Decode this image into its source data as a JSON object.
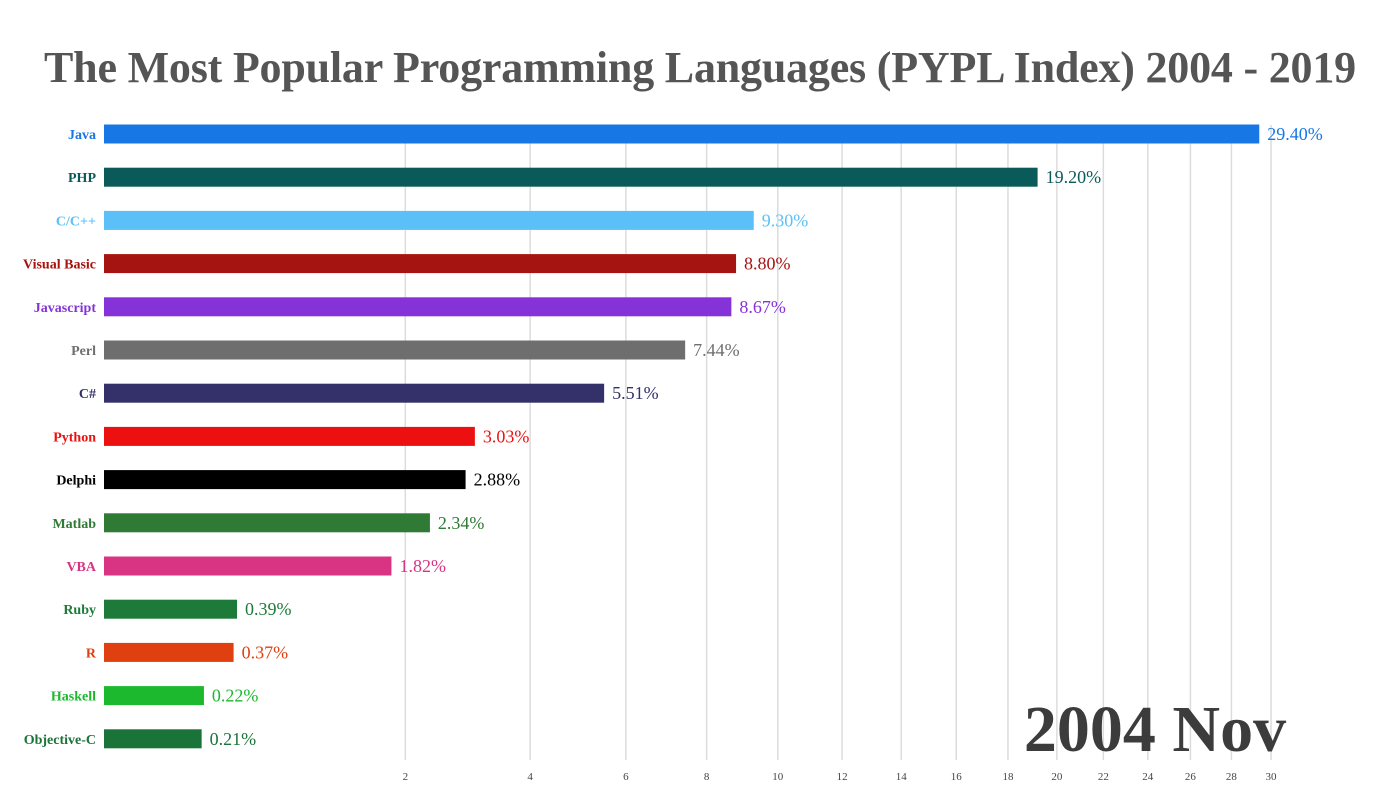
{
  "chart_data": {
    "type": "bar",
    "title": "The Most Popular Programming Languages (PYPL Index) 2004 - 2019",
    "date_label": "2004 Nov",
    "x_scale": "sqrt",
    "xlim": [
      0,
      30
    ],
    "grid": true,
    "x_ticks": [
      2,
      4,
      6,
      8,
      10,
      12,
      14,
      16,
      18,
      20,
      22,
      24,
      26,
      28,
      30
    ],
    "categories": [
      "Java",
      "PHP",
      "C/C++",
      "Visual Basic",
      "Javascript",
      "Perl",
      "C#",
      "Python",
      "Delphi",
      "Matlab",
      "VBA",
      "Ruby",
      "R",
      "Haskell",
      "Objective-C"
    ],
    "values": [
      29.4,
      19.2,
      9.3,
      8.8,
      8.67,
      7.44,
      5.51,
      3.03,
      2.88,
      2.34,
      1.82,
      0.39,
      0.37,
      0.22,
      0.21
    ],
    "value_labels": [
      "29.40%",
      "19.20%",
      "9.30%",
      "8.80%",
      "8.67%",
      "7.44%",
      "5.51%",
      "3.03%",
      "2.88%",
      "2.34%",
      "1.82%",
      "0.39%",
      "0.37%",
      "0.22%",
      "0.21%"
    ],
    "colors": [
      "#1677e5",
      "#0b5a5a",
      "#5bc0f8",
      "#a51410",
      "#8533d9",
      "#6e6e6e",
      "#33306a",
      "#ec1010",
      "#000000",
      "#2f7a35",
      "#d93384",
      "#1e7a38",
      "#e04010",
      "#1cb82e",
      "#1a7338"
    ],
    "label_colors": [
      "#1677e5",
      "#0b5a5a",
      "#5bc0f8",
      "#a51410",
      "#8533d9",
      "#6e6e6e",
      "#33306a",
      "#ec1010",
      "#000000",
      "#2f7a35",
      "#d93384",
      "#1e7a38",
      "#e04010",
      "#1cb82e",
      "#1a7338"
    ]
  }
}
